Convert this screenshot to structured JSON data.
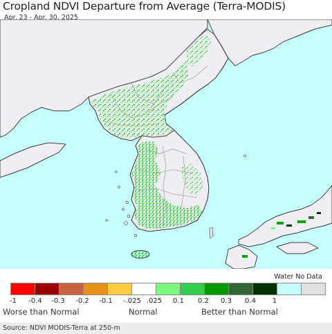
{
  "header": {
    "title": "Cropland NDVI Departure from Average (Terra-MODIS)",
    "date_range": "Apr. 23 - Apr. 30, 2025"
  },
  "map": {
    "colors": {
      "water": "#c6fdfd",
      "land_no_crop": "#f1eef3",
      "border": "#8c8c8c",
      "coast": "#000000",
      "crop_light": "#7dfa7d",
      "crop_mid": "#2ecf4d",
      "crop_dark": "#05a305",
      "neg_light": "#fac54a"
    }
  },
  "legend": {
    "water_label": "Water No Data",
    "classes": [
      {
        "color": "#ff0000",
        "name": "-1 to -0.4"
      },
      {
        "color": "#990000",
        "name": "-0.4 to -0.3"
      },
      {
        "color": "#c86342",
        "name": "-0.3 to -0.2"
      },
      {
        "color": "#e69215",
        "name": "-0.2 to -0.1"
      },
      {
        "color": "#ffcc44",
        "name": "-0.1 to -0.025"
      },
      {
        "color": "#ffffff",
        "name": "-0.025 to 0.025"
      },
      {
        "color": "#7cf87c",
        "name": "0.025 to 0.1"
      },
      {
        "color": "#33cc4d",
        "name": "0.1 to 0.2"
      },
      {
        "color": "#009900",
        "name": "0.2 to 0.3"
      },
      {
        "color": "#336633",
        "name": "0.3 to 0.4"
      },
      {
        "color": "#003300",
        "name": "0.4 to 1"
      },
      {
        "color": "#c6fdfd",
        "name": "water"
      },
      {
        "color": "#e0e0e0",
        "name": "no data"
      }
    ],
    "ticks": [
      "-1",
      "-0.4",
      "-0.3",
      "-0.2",
      "-0.1",
      "-.025",
      ".025",
      "0.1",
      "0.2",
      "0.3",
      "0.4",
      "1"
    ],
    "captions": {
      "worse": "Worse than Normal",
      "normal": "Normal",
      "better": "Better than Normal"
    }
  },
  "footer": {
    "source": "Source: NDVI MODIS-Terra at 250-m"
  }
}
